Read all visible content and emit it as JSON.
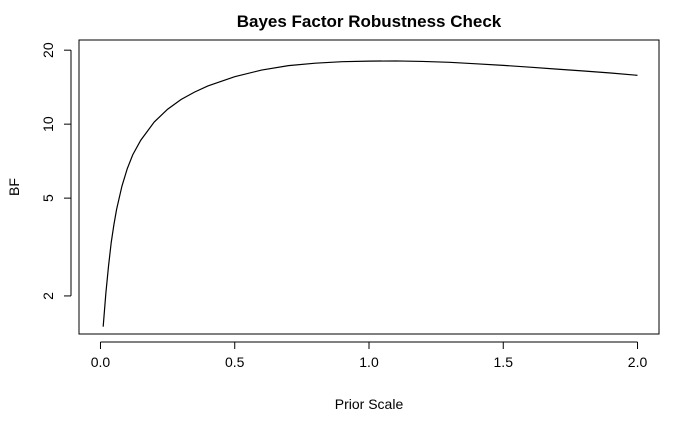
{
  "chart_data": {
    "type": "line",
    "title": "Bayes Factor Robustness Check",
    "xlabel": "Prior Scale",
    "ylabel": "BF",
    "xlim": [
      -0.08,
      2.08
    ],
    "ylim": [
      1.4,
      22
    ],
    "y_scale": "log",
    "grid": false,
    "legend": "none",
    "line_color": "#000000",
    "x_ticks": [
      0.0,
      0.5,
      1.0,
      1.5,
      2.0
    ],
    "x_tick_labels": [
      "0.0",
      "0.5",
      "1.0",
      "1.5",
      "2.0"
    ],
    "y_ticks": [
      2,
      5,
      10,
      20
    ],
    "y_tick_labels": [
      "2",
      "5",
      "10",
      "20"
    ],
    "series": [
      {
        "x": [
          0.01,
          0.02,
          0.03,
          0.04,
          0.05,
          0.06,
          0.08,
          0.1,
          0.12,
          0.15,
          0.2,
          0.25,
          0.3,
          0.35,
          0.4,
          0.5,
          0.6,
          0.7,
          0.8,
          0.9,
          1.0,
          1.1,
          1.2,
          1.3,
          1.4,
          1.5,
          1.6,
          1.7,
          1.8,
          1.9,
          2.0
        ],
        "y": [
          1.5,
          2.05,
          2.65,
          3.3,
          3.9,
          4.5,
          5.6,
          6.6,
          7.5,
          8.6,
          10.2,
          11.5,
          12.6,
          13.5,
          14.3,
          15.6,
          16.6,
          17.3,
          17.7,
          17.95,
          18.05,
          18.08,
          18.0,
          17.85,
          17.6,
          17.35,
          17.05,
          16.75,
          16.45,
          16.15,
          15.8
        ]
      }
    ]
  }
}
